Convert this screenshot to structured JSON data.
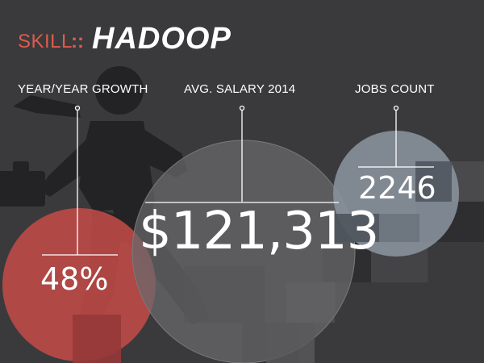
{
  "header": {
    "skill_label": "SKILL",
    "separator": "::",
    "skill_name": "HADOOP"
  },
  "metrics": {
    "growth": {
      "label": "YEAR/YEAR GROWTH",
      "value": "48%"
    },
    "salary": {
      "label": "AVG. SALARY 2014",
      "value": "$121,313"
    },
    "jobs": {
      "label": "JOBS COUNT",
      "value": "2246"
    }
  },
  "colors": {
    "background": "#3a3a3c",
    "accent_red": "#e05a4e",
    "growth_circle": "#c04a48",
    "salary_circle": "#6a6a6c",
    "jobs_circle": "#8a939e",
    "text": "#ffffff"
  }
}
